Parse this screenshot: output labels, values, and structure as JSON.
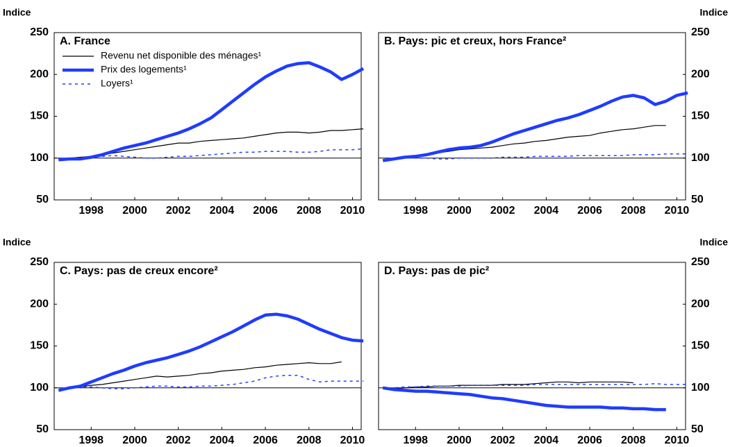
{
  "chart_data": [
    {
      "type": "line",
      "title": "A. France",
      "ylabel": "Indice",
      "ytick_side": "left",
      "legend": "upper left",
      "hline": 100,
      "xlim": [
        1996.3,
        2010.4
      ],
      "xticks": [
        1998,
        2000,
        2002,
        2004,
        2006,
        2008,
        2010
      ],
      "ylim": [
        50,
        250
      ],
      "yticks": [
        50,
        100,
        150,
        200,
        250
      ],
      "x": [
        1996.5,
        1997,
        1997.5,
        1998,
        1998.5,
        1999,
        1999.5,
        2000,
        2000.5,
        2001,
        2001.5,
        2002,
        2002.5,
        2003,
        2003.5,
        2004,
        2004.5,
        2005,
        2005.5,
        2006,
        2006.5,
        2007,
        2007.5,
        2008,
        2008.5,
        2009,
        2009.5,
        2010,
        2010.5
      ],
      "series": [
        {
          "name": "Revenu net disponible des ménages¹",
          "color": "#000000",
          "width": 1.2,
          "dash": "none",
          "values": [
            99,
            100,
            101,
            102,
            104,
            106,
            108,
            110,
            112,
            114,
            116,
            118,
            118,
            120,
            121,
            122,
            123,
            124,
            126,
            128,
            130,
            131,
            131,
            130,
            131,
            133,
            133,
            134,
            135
          ]
        },
        {
          "name": "Prix des logements¹",
          "color": "#1f3cff",
          "width": 4.5,
          "dash": "none",
          "values": [
            98,
            99,
            99,
            101,
            104,
            108,
            112,
            115,
            118,
            122,
            126,
            130,
            135,
            141,
            148,
            158,
            168,
            178,
            188,
            197,
            204,
            210,
            213,
            214,
            209,
            203,
            194,
            200,
            207
          ]
        },
        {
          "name": "Loyers¹",
          "color": "#1f3cff",
          "width": 1.5,
          "dash": "4 5",
          "values": [
            98,
            99,
            100,
            101,
            102,
            103,
            102,
            101,
            100,
            100,
            101,
            102,
            102,
            103,
            104,
            105,
            106,
            107,
            107,
            108,
            108,
            108,
            107,
            107,
            108,
            110,
            110,
            110,
            111
          ]
        }
      ]
    },
    {
      "type": "line",
      "title": "B. Pays: pic et creux, hors France²",
      "ylabel": "Indice",
      "ytick_side": "right",
      "hline": 100,
      "xlim": [
        1996.3,
        2010.4
      ],
      "xticks": [
        1998,
        2000,
        2002,
        2004,
        2006,
        2008,
        2010
      ],
      "ylim": [
        50,
        250
      ],
      "yticks": [
        50,
        100,
        150,
        200,
        250
      ],
      "x": [
        1996.5,
        1997,
        1997.5,
        1998,
        1998.5,
        1999,
        1999.5,
        2000,
        2000.5,
        2001,
        2001.5,
        2002,
        2002.5,
        2003,
        2003.5,
        2004,
        2004.5,
        2005,
        2005.5,
        2006,
        2006.5,
        2007,
        2007.5,
        2008,
        2008.5,
        2009,
        2009.5,
        2010,
        2010.5
      ],
      "series": [
        {
          "color": "#000000",
          "width": 1.2,
          "dash": "none",
          "values": [
            98,
            100,
            101,
            102,
            104,
            106,
            108,
            110,
            111,
            112,
            113,
            115,
            117,
            118,
            120,
            121,
            123,
            125,
            126,
            127,
            130,
            132,
            134,
            135,
            137,
            139,
            139,
            null,
            null
          ]
        },
        {
          "color": "#1f3cff",
          "width": 4.5,
          "dash": "none",
          "values": [
            97,
            99,
            101,
            102,
            104,
            107,
            110,
            112,
            113,
            115,
            119,
            124,
            129,
            133,
            137,
            141,
            145,
            148,
            152,
            157,
            162,
            168,
            173,
            175,
            172,
            164,
            168,
            175,
            178
          ]
        },
        {
          "color": "#1f3cff",
          "width": 1.5,
          "dash": "4 5",
          "values": [
            97,
            99,
            100,
            100,
            100,
            99,
            99,
            100,
            100,
            100,
            100,
            101,
            101,
            101,
            102,
            102,
            102,
            102,
            103,
            103,
            103,
            103,
            103,
            104,
            104,
            104,
            105,
            105,
            105
          ]
        }
      ]
    },
    {
      "type": "line",
      "title": "C. Pays: pas de creux encore²",
      "ylabel": "Indice",
      "ytick_side": "left",
      "hline": 100,
      "xlim": [
        1996.3,
        2010.4
      ],
      "xticks": [
        1998,
        2000,
        2002,
        2004,
        2006,
        2008,
        2010
      ],
      "ylim": [
        50,
        250
      ],
      "yticks": [
        50,
        100,
        150,
        200,
        250
      ],
      "x": [
        1996.5,
        1997,
        1997.5,
        1998,
        1998.5,
        1999,
        1999.5,
        2000,
        2000.5,
        2001,
        2001.5,
        2002,
        2002.5,
        2003,
        2003.5,
        2004,
        2004.5,
        2005,
        2005.5,
        2006,
        2006.5,
        2007,
        2007.5,
        2008,
        2008.5,
        2009,
        2009.5,
        2010,
        2010.5
      ],
      "series": [
        {
          "color": "#000000",
          "width": 1.2,
          "dash": "none",
          "values": [
            98,
            100,
            101,
            103,
            104,
            106,
            108,
            110,
            112,
            114,
            113,
            114,
            115,
            117,
            118,
            120,
            121,
            122,
            124,
            125,
            127,
            128,
            129,
            130,
            129,
            129,
            131,
            null,
            null
          ]
        },
        {
          "color": "#1f3cff",
          "width": 4.5,
          "dash": "none",
          "values": [
            97,
            100,
            102,
            107,
            112,
            117,
            121,
            126,
            130,
            133,
            136,
            140,
            144,
            149,
            155,
            161,
            167,
            174,
            181,
            187,
            188,
            186,
            182,
            176,
            170,
            165,
            160,
            157,
            156
          ]
        },
        {
          "color": "#1f3cff",
          "width": 1.5,
          "dash": "4 5",
          "values": [
            98,
            100,
            101,
            101,
            100,
            99,
            99,
            100,
            101,
            102,
            102,
            101,
            101,
            102,
            102,
            103,
            104,
            106,
            108,
            112,
            114,
            115,
            115,
            110,
            107,
            108,
            108,
            108,
            108
          ]
        }
      ]
    },
    {
      "type": "line",
      "title": "D. Pays: pas de pic²",
      "ylabel": "Indice",
      "ytick_side": "right",
      "hline": 100,
      "xlim": [
        1996.3,
        2010.4
      ],
      "xticks": [
        1998,
        2000,
        2002,
        2004,
        2006,
        2008,
        2010
      ],
      "ylim": [
        50,
        250
      ],
      "yticks": [
        50,
        100,
        150,
        200,
        250
      ],
      "x": [
        1996.5,
        1997,
        1997.5,
        1998,
        1998.5,
        1999,
        1999.5,
        2000,
        2000.5,
        2001,
        2001.5,
        2002,
        2002.5,
        2003,
        2003.5,
        2004,
        2004.5,
        2005,
        2005.5,
        2006,
        2006.5,
        2007,
        2007.5,
        2008,
        2008.5,
        2009,
        2009.5,
        2010,
        2010.5
      ],
      "series": [
        {
          "color": "#000000",
          "width": 1.2,
          "dash": "none",
          "values": [
            101,
            99,
            100,
            101,
            101,
            102,
            102,
            103,
            103,
            103,
            103,
            104,
            104,
            104,
            105,
            106,
            107,
            107,
            106,
            107,
            107,
            107,
            107,
            106,
            null,
            null,
            null,
            null,
            null
          ]
        },
        {
          "color": "#1f3cff",
          "width": 4.5,
          "dash": "none",
          "values": [
            100,
            98,
            97,
            96,
            96,
            95,
            94,
            93,
            92,
            90,
            88,
            87,
            85,
            83,
            81,
            79,
            78,
            77,
            77,
            77,
            77,
            76,
            76,
            75,
            75,
            74,
            74,
            null,
            null
          ]
        },
        {
          "color": "#1f3cff",
          "width": 1.5,
          "dash": "4 5",
          "values": [
            100,
            100,
            101,
            101,
            102,
            102,
            102,
            102,
            103,
            103,
            103,
            103,
            103,
            103,
            104,
            104,
            104,
            104,
            104,
            104,
            104,
            104,
            104,
            104,
            104,
            105,
            104,
            104,
            104
          ]
        }
      ]
    }
  ]
}
